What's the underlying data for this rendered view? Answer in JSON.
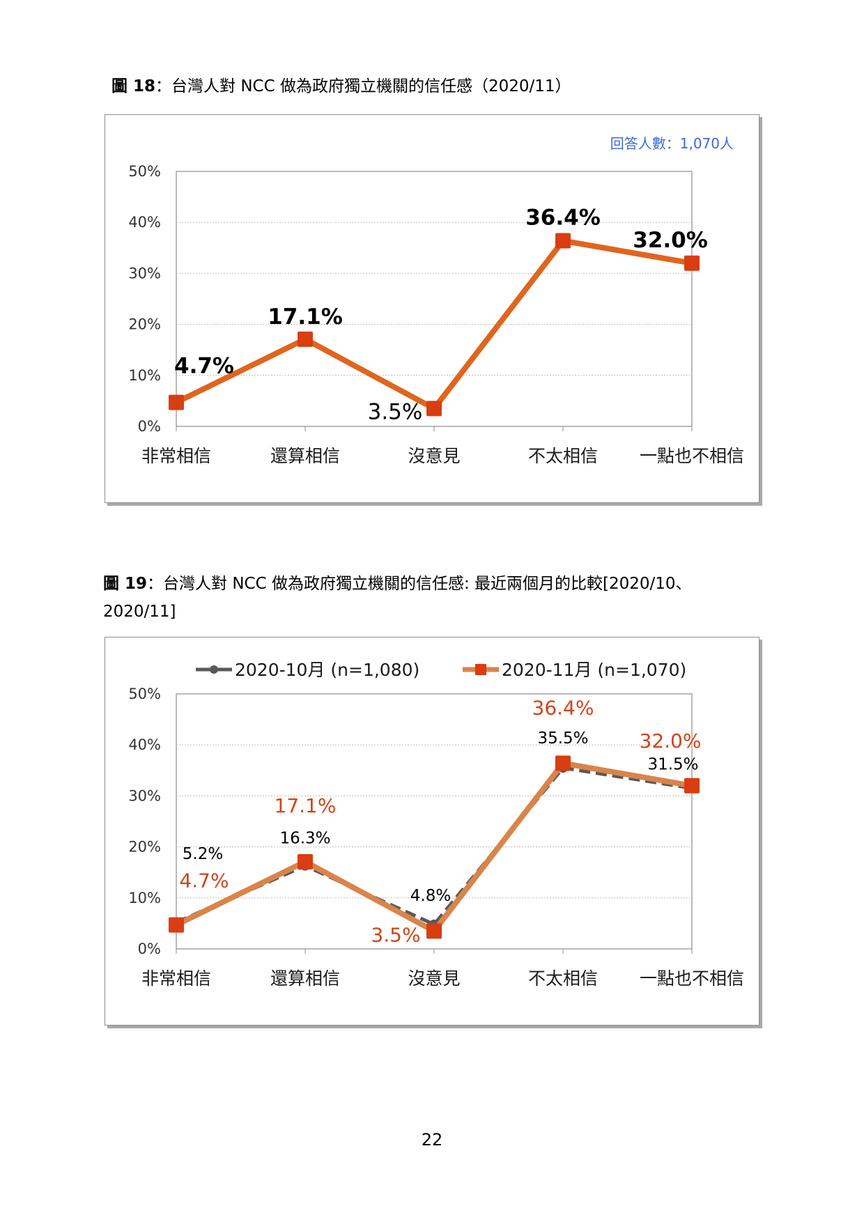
{
  "page": {
    "number": "22"
  },
  "figures": [
    {
      "label": "圖 18",
      "caption": "：台灣人對 NCC 做為政府獨立機關的信任感（2020/11）"
    },
    {
      "label": "圖 19",
      "caption": "：台灣人對 NCC 做為政府獨立機關的信任感: 最近兩個月的比較[2020/10、2020/11]"
    }
  ],
  "chart_data": [
    {
      "type": "line",
      "title": "",
      "note": "回答人數：1,070人",
      "categories": [
        "非常相信",
        "還算相信",
        "沒意見",
        "不太相信",
        "一點也不相信"
      ],
      "series": [
        {
          "values": [
            4.7,
            17.1,
            3.5,
            36.4,
            32.0
          ],
          "labels": [
            "4.7%",
            "17.1%",
            "3.5%",
            "36.4%",
            "32.0%"
          ],
          "color": "#e0651e",
          "marker": "square"
        }
      ],
      "ylim": [
        0,
        50
      ],
      "yticks": [
        "0%",
        "10%",
        "20%",
        "30%",
        "40%",
        "50%"
      ],
      "grid": true,
      "legend": "none"
    },
    {
      "type": "line",
      "title": "",
      "categories": [
        "非常相信",
        "還算相信",
        "沒意見",
        "不太相信",
        "一點也不相信"
      ],
      "series": [
        {
          "name": "2020-10月 (n=1,080)",
          "values": [
            5.2,
            16.3,
            4.8,
            35.5,
            31.5
          ],
          "labels": [
            "5.2%",
            "16.3%",
            "4.8%",
            "35.5%",
            "31.5%"
          ],
          "color": "#595959",
          "marker": "circle",
          "dash": true
        },
        {
          "name": "2020-11月 (n=1,070)",
          "values": [
            4.7,
            17.1,
            3.5,
            36.4,
            32.0
          ],
          "labels": [
            "4.7%",
            "17.1%",
            "3.5%",
            "36.4%",
            "32.0%"
          ],
          "color": "#d9844a",
          "marker": "square",
          "label_color": "#d14418"
        }
      ],
      "ylim": [
        0,
        50
      ],
      "yticks": [
        "0%",
        "10%",
        "20%",
        "30%",
        "40%",
        "50%"
      ],
      "grid": true,
      "legend": "top"
    }
  ]
}
